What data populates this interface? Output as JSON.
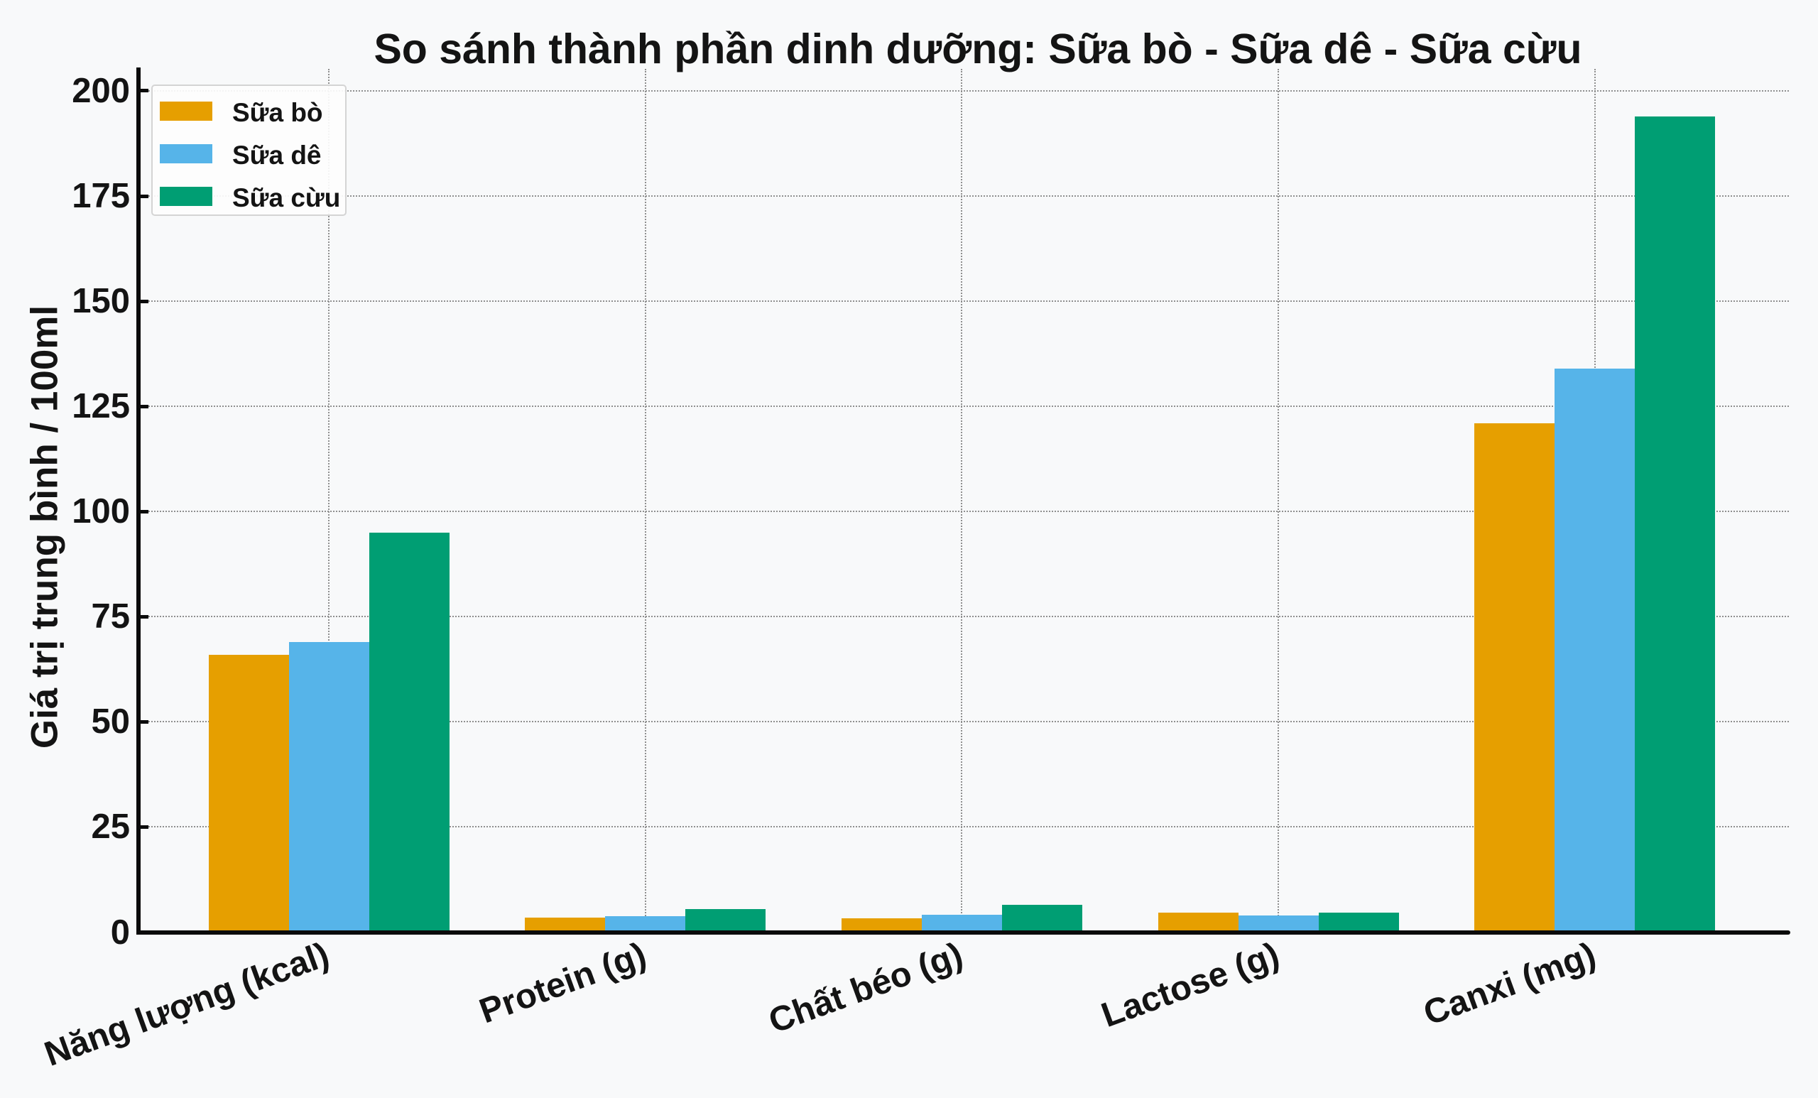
{
  "chart_data": {
    "type": "bar",
    "title": "So sánh thành phần dinh dưỡng: Sữa bò - Sữa dê - Sữa cừu",
    "ylabel": "Giá trị trung bình / 100ml",
    "xlabel": "",
    "categories": [
      "Năng lượng (kcal)",
      "Protein (g)",
      "Chất béo (g)",
      "Lactose (g)",
      "Canxi (mg)"
    ],
    "series": [
      {
        "name": "Sữa bò",
        "color": "#E69F00",
        "values": [
          66,
          3.5,
          3.3,
          4.6,
          121
        ]
      },
      {
        "name": "Sữa dê",
        "color": "#56B4E9",
        "values": [
          69,
          3.8,
          4.1,
          4.0,
          134
        ]
      },
      {
        "name": "Sữa cừu",
        "color": "#009E73",
        "values": [
          95,
          5.5,
          6.5,
          4.6,
          194
        ]
      }
    ],
    "yticks": [
      0,
      25,
      50,
      75,
      100,
      125,
      150,
      175,
      200
    ],
    "ylim": [
      0,
      205
    ],
    "grid": true,
    "grid_style": "dotted",
    "legend_position": "upper left",
    "colors": {
      "background": "#f8f9fa",
      "axis": "#0b0b0b",
      "grid": "#8f8f8f",
      "text": "#141414"
    }
  }
}
